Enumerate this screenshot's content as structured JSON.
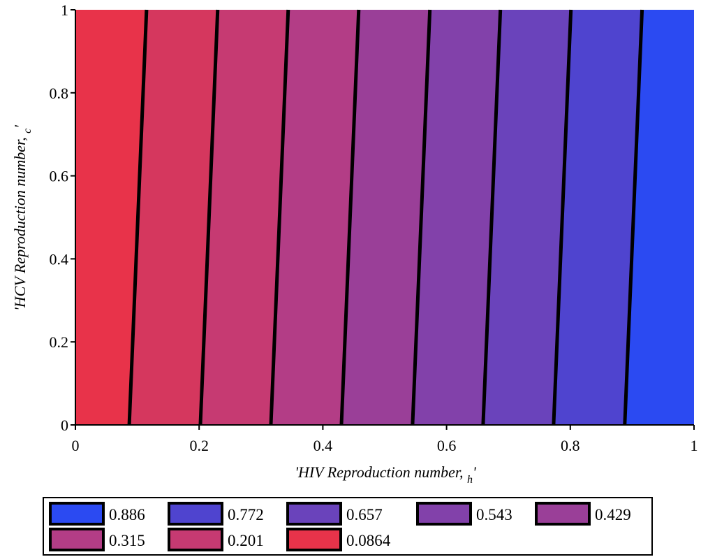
{
  "chart_data": {
    "type": "heatmap",
    "subtype": "filled-contour",
    "xlabel": "'HIV Reproduction number, ",
    "xlabel_sub": "h",
    "xlabel_end": "'",
    "ylabel": "'HCV Reproduction number, ",
    "ylabel_sub": "c",
    "ylabel_end": "'",
    "xlim": [
      0,
      1
    ],
    "ylim": [
      0,
      1
    ],
    "x_ticks": [
      {
        "value": 0,
        "label": "0"
      },
      {
        "value": 0.2,
        "label": "0.2"
      },
      {
        "value": 0.4,
        "label": "0.4"
      },
      {
        "value": 0.6,
        "label": "0.6"
      },
      {
        "value": 0.8,
        "label": "0.8"
      },
      {
        "value": 1,
        "label": "1"
      }
    ],
    "y_ticks": [
      {
        "value": 0,
        "label": "0"
      },
      {
        "value": 0.2,
        "label": "0.2"
      },
      {
        "value": 0.4,
        "label": "0.4"
      },
      {
        "value": 0.6,
        "label": "0.6"
      },
      {
        "value": 0.8,
        "label": "0.8"
      },
      {
        "value": 1,
        "label": "1"
      }
    ],
    "contour_lines": [
      {
        "x_at_ymin": 0.087,
        "x_at_ymax": 0.115
      },
      {
        "x_at_ymin": 0.202,
        "x_at_ymax": 0.23
      },
      {
        "x_at_ymin": 0.316,
        "x_at_ymax": 0.344
      },
      {
        "x_at_ymin": 0.43,
        "x_at_ymax": 0.458
      },
      {
        "x_at_ymin": 0.545,
        "x_at_ymax": 0.573
      },
      {
        "x_at_ymin": 0.659,
        "x_at_ymax": 0.687
      },
      {
        "x_at_ymin": 0.773,
        "x_at_ymax": 0.801
      },
      {
        "x_at_ymin": 0.888,
        "x_at_ymax": 0.916
      }
    ],
    "bands": [
      {
        "color": "#e8334a"
      },
      {
        "color": "#d5375e"
      },
      {
        "color": "#c63a72"
      },
      {
        "color": "#b33d86"
      },
      {
        "color": "#9a3f98"
      },
      {
        "color": "#8241aa"
      },
      {
        "color": "#6a43bb"
      },
      {
        "color": "#4f44cf"
      },
      {
        "color": "#2b4af2"
      }
    ],
    "legend": {
      "placement": "bottom",
      "rows": [
        [
          {
            "label": "0.886",
            "color": "#2b4af2"
          },
          {
            "label": "0.772",
            "color": "#4f44cf"
          },
          {
            "label": "0.657",
            "color": "#6a43bb"
          },
          {
            "label": "0.543",
            "color": "#8241aa"
          },
          {
            "label": "0.429",
            "color": "#9a3f98"
          }
        ],
        [
          {
            "label": "0.315",
            "color": "#b33d86"
          },
          {
            "label": "0.201",
            "color": "#c63a72"
          },
          {
            "label": "0.0864",
            "color": "#e8334a"
          }
        ]
      ]
    }
  }
}
